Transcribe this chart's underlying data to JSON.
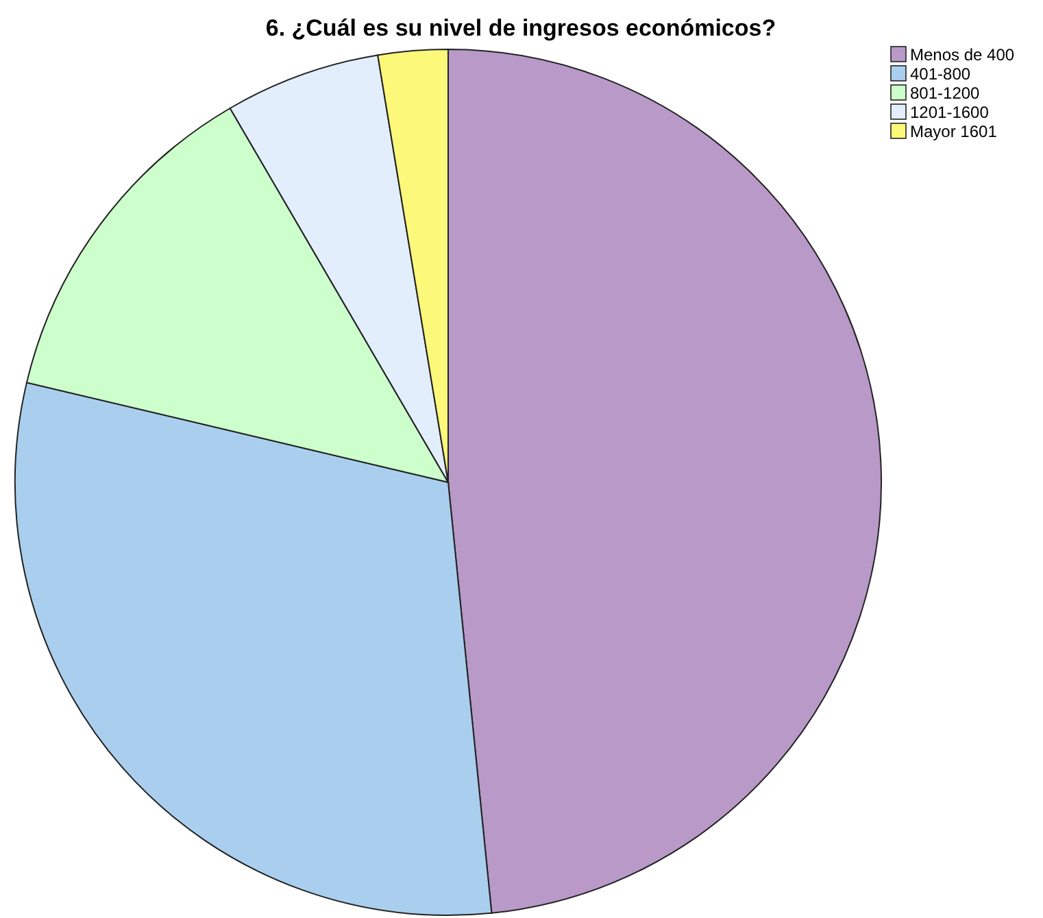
{
  "chart_data": {
    "type": "pie",
    "title": "6. ¿Cuál es su nivel de ingresos económicos?",
    "categories": [
      "Menos de 400",
      "401-800",
      "801-1200",
      "1201-1600",
      "Mayor 1601"
    ],
    "values": [
      48.4,
      30.3,
      12.9,
      5.8,
      2.6
    ],
    "colors": [
      "#b899c8",
      "#aacfee",
      "#ccffcc",
      "#e2eefb",
      "#fcf87a"
    ],
    "legend": "top right"
  }
}
